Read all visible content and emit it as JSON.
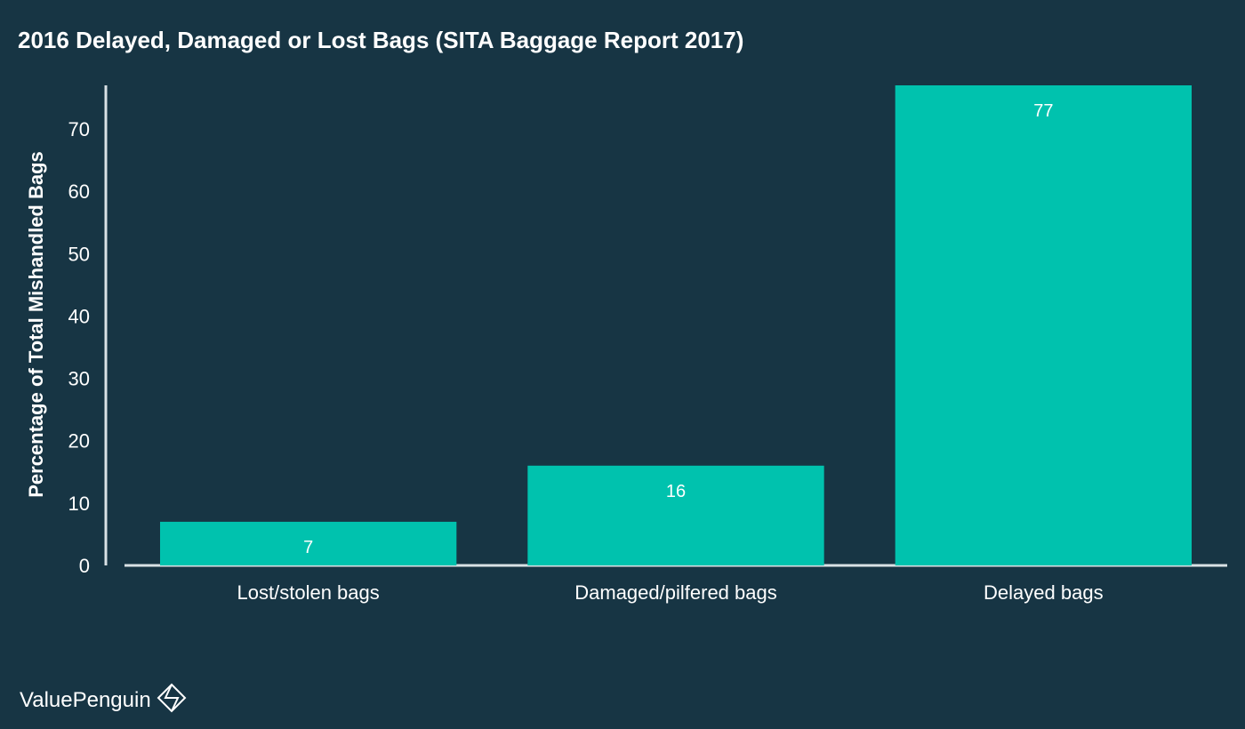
{
  "chart_data": {
    "type": "bar",
    "title": "2016 Delayed, Damaged or Lost Bags (SITA Baggage Report 2017)",
    "xlabel": "",
    "ylabel": "Percentage of Total Mishandled Bags",
    "categories": [
      "Lost/stolen bags",
      "Damaged/pilfered bags",
      "Delayed bags"
    ],
    "values": [
      7,
      16,
      77
    ],
    "data_labels": [
      "7",
      "16",
      "77"
    ],
    "yticks": [
      0,
      10,
      20,
      30,
      40,
      50,
      60,
      70
    ],
    "ylim": [
      0,
      77
    ],
    "grid": false,
    "legend": "none",
    "colors": {
      "bar": "#00c2ae",
      "background": "#173544",
      "axis": "#d9e1e5",
      "text": "#ffffff"
    }
  },
  "brand": {
    "name": "ValuePenguin",
    "icon": "valuepenguin-logo-icon"
  }
}
